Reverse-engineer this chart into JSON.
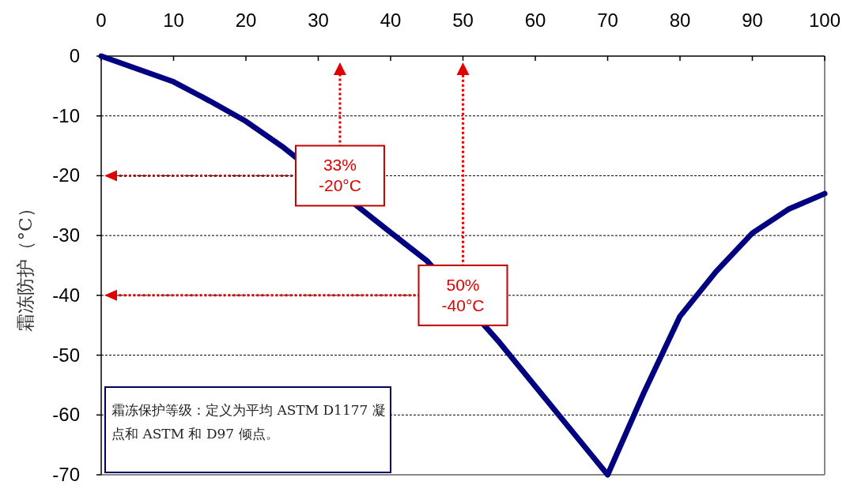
{
  "chart_data": {
    "type": "line",
    "ylabel": "霜冻防护（°C）",
    "x": [
      0,
      10,
      15,
      20,
      25,
      40,
      45,
      55,
      60,
      70,
      75,
      80,
      85,
      90,
      95,
      100
    ],
    "series": [
      {
        "color": "#000080",
        "values": [
          0,
          -4.3,
          -7.5,
          -10.9,
          -15.1,
          -29.5,
          -34.2,
          -47.8,
          -55.2,
          -70,
          -56.3,
          -43.5,
          -36,
          -29.6,
          -25.6,
          -23
        ]
      }
    ],
    "xlim": [
      0,
      100
    ],
    "xticks": [
      0,
      10,
      20,
      30,
      40,
      50,
      60,
      70,
      80,
      90,
      100
    ],
    "ylim": [
      -70,
      0
    ],
    "yticks": [
      0,
      -10,
      -20,
      -30,
      -40,
      -50,
      -60,
      -70
    ],
    "grid": "y",
    "ref_lines": [
      {
        "axis": "x",
        "value": 33,
        "color": "#e00000",
        "line_style": "dotted"
      },
      {
        "axis": "y",
        "value": -20,
        "color": "#e00000",
        "line_style": "dotted"
      },
      {
        "axis": "x",
        "value": 50,
        "color": "#e00000",
        "line_style": "dotted"
      },
      {
        "axis": "y",
        "value": -40,
        "color": "#e00000",
        "line_style": "dotted"
      }
    ],
    "annotations": [
      {
        "text": "33%\n-20°C",
        "x": 33,
        "y": -20
      },
      {
        "text": "50%\n-40°C",
        "x": 50,
        "y": -40
      },
      "霜冻保护等级：定义为平均 ASTM D1177 凝点和 ASTM 和 D97 倾点。"
    ]
  }
}
